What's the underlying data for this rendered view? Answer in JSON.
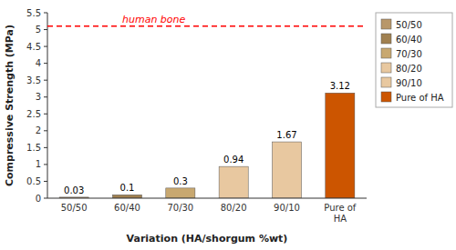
{
  "chart_data": {
    "type": "bar",
    "categories": [
      "50/50",
      "60/40",
      "70/30",
      "80/20",
      "90/10",
      "Pure of\nHA"
    ],
    "values": [
      0.03,
      0.1,
      0.3,
      0.94,
      1.67,
      3.12
    ],
    "colors": [
      "#b8976a",
      "#a08050",
      "#c8a870",
      "#e8c8a0",
      "#e8c8a0",
      "#cc5500"
    ],
    "data_labels": true,
    "ylim": [
      0,
      5.5
    ],
    "yticks": [
      0,
      0.5,
      1,
      1.5,
      2,
      2.5,
      3,
      3.5,
      4,
      4.5,
      5,
      5.5
    ],
    "ylabel": "Compressive Strength (MPa)",
    "xlabel": "Variation (HA/shorgum %wt)",
    "grid": false,
    "legend": "upper right",
    "legend_labels": [
      "50/50",
      "60/40",
      "70/30",
      "80/20",
      "90/10",
      "Pure of HA"
    ],
    "annotations": [
      {
        "text": "human bone",
        "y": 5.1,
        "color": "#ff0000",
        "line_style": "dashed"
      }
    ]
  }
}
